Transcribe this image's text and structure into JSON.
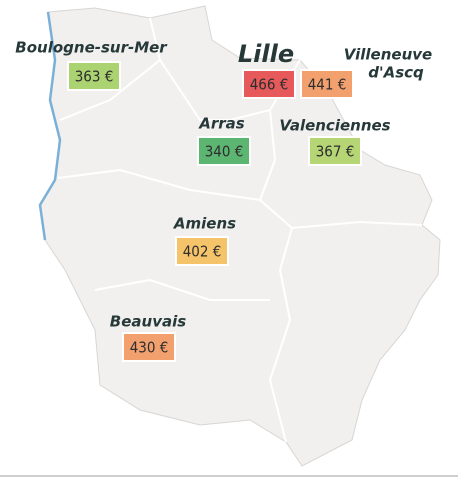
{
  "cities": [
    {
      "name": [
        "Boulogne-sur-Mer"
      ],
      "price": "363 €",
      "color": "#abd371"
    },
    {
      "name": [
        "Lille"
      ],
      "price": "466 €",
      "color": "#e65a5c"
    },
    {
      "name": [
        "Villeneuve",
        "d'Ascq"
      ],
      "price": "441 €",
      "color": "#f3a06f"
    },
    {
      "name": [
        "Arras"
      ],
      "price": "340 €",
      "color": "#5db572"
    },
    {
      "name": [
        "Valenciennes"
      ],
      "price": "367 €",
      "color": "#b6d575"
    },
    {
      "name": [
        "Amiens"
      ],
      "price": "402 €",
      "color": "#f5c46a"
    },
    {
      "name": [
        "Beauvais"
      ],
      "price": "430 €",
      "color": "#f3a06f"
    }
  ]
}
